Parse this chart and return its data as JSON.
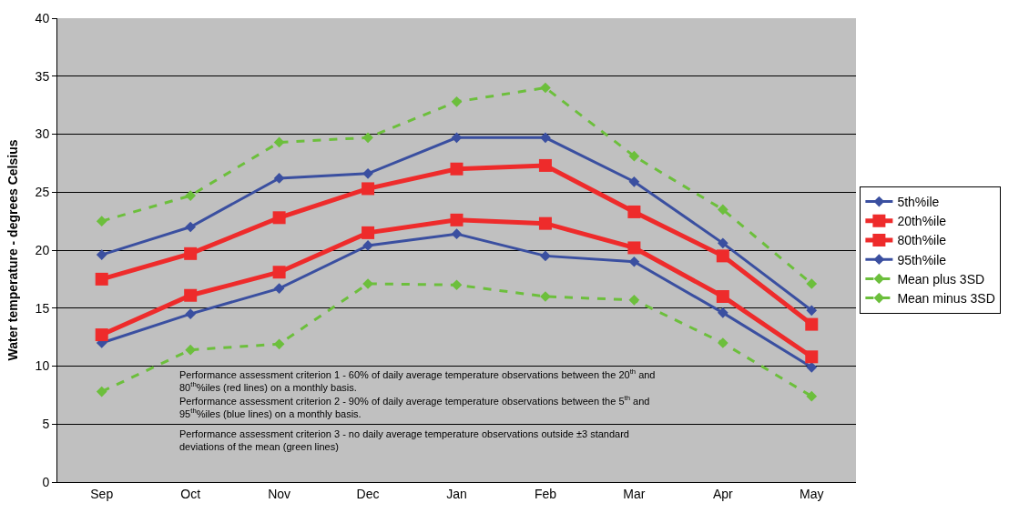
{
  "chart_data": {
    "type": "line",
    "ylabel": "Water temperature - degrees Celsius",
    "categories": [
      "Sep",
      "Oct",
      "Nov",
      "Dec",
      "Jan",
      "Feb",
      "Mar",
      "Apr",
      "May"
    ],
    "series": [
      {
        "name": "5th%ile",
        "color": "#3a4fa0",
        "marker": "diamond",
        "line_style": "solid",
        "values": [
          12.0,
          14.5,
          16.7,
          20.4,
          21.4,
          19.5,
          19.0,
          14.6,
          9.9
        ]
      },
      {
        "name": "20th%ile",
        "color": "#ee2b2b",
        "marker": "square",
        "line_style": "solid",
        "values": [
          12.7,
          16.1,
          18.1,
          21.5,
          22.6,
          22.3,
          20.2,
          16.0,
          10.8
        ]
      },
      {
        "name": "80th%ile",
        "color": "#ee2b2b",
        "marker": "square",
        "line_style": "solid",
        "values": [
          17.5,
          19.7,
          22.8,
          25.3,
          27.0,
          27.3,
          23.3,
          19.5,
          13.6
        ]
      },
      {
        "name": "95th%ile",
        "color": "#3a4fa0",
        "marker": "diamond",
        "line_style": "solid",
        "values": [
          19.6,
          22.0,
          26.2,
          26.6,
          29.7,
          29.7,
          25.9,
          20.6,
          14.8
        ]
      },
      {
        "name": "Mean plus 3SD",
        "color": "#6cbf3c",
        "marker": "diamond",
        "line_style": "dashed",
        "values": [
          22.5,
          24.7,
          29.3,
          29.7,
          32.8,
          34.0,
          28.1,
          23.5,
          17.1
        ]
      },
      {
        "name": "Mean minus 3SD",
        "color": "#6cbf3c",
        "marker": "diamond",
        "line_style": "dashed",
        "values": [
          7.8,
          11.4,
          11.9,
          17.1,
          17.0,
          16.0,
          15.7,
          12.0,
          7.4
        ]
      }
    ],
    "ylim": [
      0,
      40
    ],
    "yticks": [
      0,
      5,
      10,
      15,
      20,
      25,
      30,
      35,
      40
    ],
    "grid": "y",
    "legend": "right",
    "annotations": [
      "Performance assessment criterion 1 - 60% of daily average temperature observations between the 20$^{th}$ and 80$^{th}$%iles (red lines) on a monthly basis.",
      "Performance assessment criterion 2 - 90% of daily average temperature observations between the 5$^{th}$ and 95$^{th}$%iles (blue lines) on a monthly basis.",
      "Performance assessment criterion 3 - no daily average temperature observations outside ±3 standard deviations of the mean (green lines)"
    ]
  }
}
